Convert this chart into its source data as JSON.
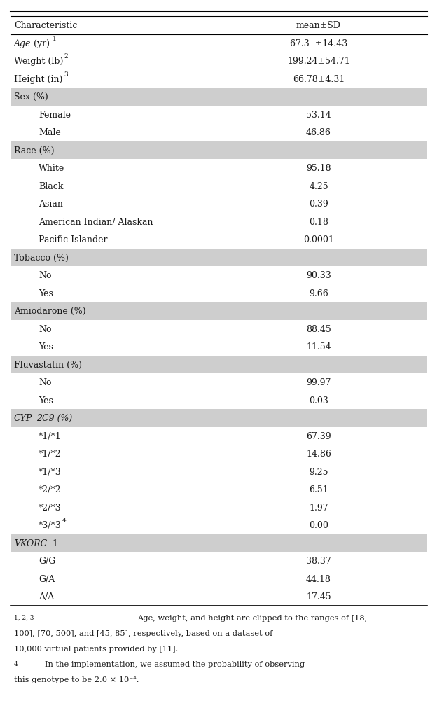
{
  "header": [
    "Characteristic",
    "mean±SD"
  ],
  "rows": [
    {
      "label": "Age (yr)",
      "label_sup": "1",
      "value": "67.3  ±14.43",
      "indent": false,
      "age_italic": true,
      "gray": false
    },
    {
      "label": "Weight (lb)",
      "label_sup": "2",
      "value": "199.24±54.71",
      "indent": false,
      "age_italic": false,
      "gray": false
    },
    {
      "label": "Height (in)",
      "label_sup": "3",
      "value": "66.78±4.31",
      "indent": false,
      "age_italic": false,
      "gray": false
    },
    {
      "label": "Sex (%)",
      "label_sup": "",
      "value": "",
      "indent": false,
      "age_italic": false,
      "gray": true
    },
    {
      "label": "Female",
      "label_sup": "",
      "value": "53.14",
      "indent": true,
      "age_italic": false,
      "gray": false
    },
    {
      "label": "Male",
      "label_sup": "",
      "value": "46.86",
      "indent": true,
      "age_italic": false,
      "gray": false
    },
    {
      "label": "Race (%)",
      "label_sup": "",
      "value": "",
      "indent": false,
      "age_italic": false,
      "gray": true
    },
    {
      "label": "White",
      "label_sup": "",
      "value": "95.18",
      "indent": true,
      "age_italic": false,
      "gray": false
    },
    {
      "label": "Black",
      "label_sup": "",
      "value": "4.25",
      "indent": true,
      "age_italic": false,
      "gray": false
    },
    {
      "label": "Asian",
      "label_sup": "",
      "value": "0.39",
      "indent": true,
      "age_italic": false,
      "gray": false
    },
    {
      "label": "American Indian/ Alaskan",
      "label_sup": "",
      "value": "0.18",
      "indent": true,
      "age_italic": false,
      "gray": false
    },
    {
      "label": "Pacific Islander",
      "label_sup": "",
      "value": "0.0001",
      "indent": true,
      "age_italic": false,
      "gray": false
    },
    {
      "label": "Tobacco (%)",
      "label_sup": "",
      "value": "",
      "indent": false,
      "age_italic": false,
      "gray": true
    },
    {
      "label": "No",
      "label_sup": "",
      "value": "90.33",
      "indent": true,
      "age_italic": false,
      "gray": false
    },
    {
      "label": "Yes",
      "label_sup": "",
      "value": "9.66",
      "indent": true,
      "age_italic": false,
      "gray": false
    },
    {
      "label": "Amiodarone (%)",
      "label_sup": "",
      "value": "",
      "indent": false,
      "age_italic": false,
      "gray": true
    },
    {
      "label": "No",
      "label_sup": "",
      "value": "88.45",
      "indent": true,
      "age_italic": false,
      "gray": false
    },
    {
      "label": "Yes",
      "label_sup": "",
      "value": "11.54",
      "indent": true,
      "age_italic": false,
      "gray": false
    },
    {
      "label": "Fluvastatin (%)",
      "label_sup": "",
      "value": "",
      "indent": false,
      "age_italic": false,
      "gray": true
    },
    {
      "label": "No",
      "label_sup": "",
      "value": "99.97",
      "indent": true,
      "age_italic": false,
      "gray": false
    },
    {
      "label": "Yes",
      "label_sup": "",
      "value": "0.03",
      "indent": true,
      "age_italic": false,
      "gray": false
    },
    {
      "label": "CYP2C9 (%)",
      "label_sup": "",
      "value": "",
      "indent": false,
      "age_italic": true,
      "gray": true
    },
    {
      "label": "*1/*1",
      "label_sup": "",
      "value": "67.39",
      "indent": true,
      "age_italic": false,
      "gray": false
    },
    {
      "label": "*1/*2",
      "label_sup": "",
      "value": "14.86",
      "indent": true,
      "age_italic": false,
      "gray": false
    },
    {
      "label": "*1/*3",
      "label_sup": "",
      "value": "9.25",
      "indent": true,
      "age_italic": false,
      "gray": false
    },
    {
      "label": "*2/*2",
      "label_sup": "",
      "value": "6.51",
      "indent": true,
      "age_italic": false,
      "gray": false
    },
    {
      "label": "*2/*3",
      "label_sup": "",
      "value": "1.97",
      "indent": true,
      "age_italic": false,
      "gray": false
    },
    {
      "label": "*3/*3",
      "label_sup": "4",
      "value": "0.00",
      "indent": true,
      "age_italic": false,
      "gray": false
    },
    {
      "label": "VKORC1",
      "label_sup": "",
      "value": "",
      "indent": false,
      "age_italic": true,
      "gray": true
    },
    {
      "label": "G/G",
      "label_sup": "",
      "value": "38.37",
      "indent": true,
      "age_italic": false,
      "gray": false
    },
    {
      "label": "G/A",
      "label_sup": "",
      "value": "44.18",
      "indent": true,
      "age_italic": false,
      "gray": false
    },
    {
      "label": "A/A",
      "label_sup": "",
      "value": "17.45",
      "indent": true,
      "age_italic": false,
      "gray": false
    }
  ],
  "gray_color": "#cecece",
  "bg_color": "#ffffff",
  "text_color": "#1a1a1a",
  "font_size": 9.0,
  "footnote_font_size": 8.2
}
